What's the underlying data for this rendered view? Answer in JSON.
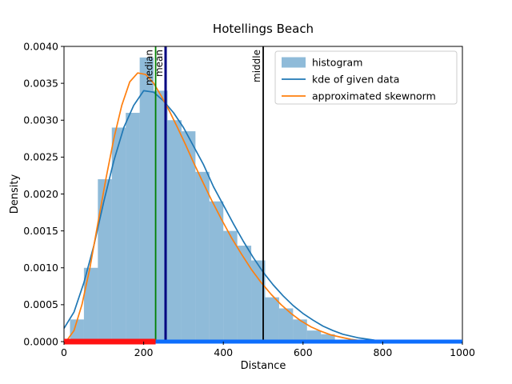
{
  "figure": {
    "title": "Hotellings Beach",
    "background": "#ffffff"
  },
  "chart_data": {
    "type": "histogram",
    "title": "Hotellings Beach",
    "xlabel": "Distance",
    "ylabel": "Density",
    "xlim": [
      0,
      1000
    ],
    "ylim": [
      0,
      0.004
    ],
    "grid": false,
    "xticks": [
      0,
      200,
      400,
      600,
      800,
      1000
    ],
    "xtick_labels": [
      "0",
      "200",
      "400",
      "600",
      "800",
      "1000"
    ],
    "yticks": [
      0,
      0.0005,
      0.001,
      0.0015,
      0.002,
      0.0025,
      0.003,
      0.0035,
      0.004
    ],
    "ytick_labels": [
      "0.0000",
      "0.0005",
      "0.0010",
      "0.0015",
      "0.0020",
      "0.0025",
      "0.0030",
      "0.0035",
      "0.0040"
    ],
    "histogram": {
      "label": "histogram",
      "color": "rgba(31,119,180,0.5)",
      "edges": [
        15,
        50,
        85,
        120,
        155,
        190,
        225,
        260,
        295,
        330,
        365,
        400,
        435,
        470,
        505,
        540,
        575,
        610,
        645,
        680
      ],
      "heights": [
        0.0003,
        0.001,
        0.0022,
        0.0029,
        0.0031,
        0.00385,
        0.0034,
        0.003,
        0.00285,
        0.0023,
        0.0019,
        0.0015,
        0.0013,
        0.0011,
        0.0006,
        0.00045,
        0.0003,
        0.00015,
        0.0001
      ]
    },
    "series": [
      {
        "name": "kde of given data",
        "color": "#1f77b4",
        "points": [
          [
            0,
            0.00018
          ],
          [
            25,
            0.0004
          ],
          [
            50,
            0.0008
          ],
          [
            75,
            0.0013
          ],
          [
            100,
            0.0019
          ],
          [
            125,
            0.00245
          ],
          [
            150,
            0.0029
          ],
          [
            175,
            0.0032
          ],
          [
            200,
            0.0034
          ],
          [
            225,
            0.00338
          ],
          [
            250,
            0.00326
          ],
          [
            275,
            0.0031
          ],
          [
            300,
            0.0029
          ],
          [
            325,
            0.00265
          ],
          [
            350,
            0.0024
          ],
          [
            375,
            0.0021
          ],
          [
            400,
            0.00185
          ],
          [
            425,
            0.0016
          ],
          [
            450,
            0.00136
          ],
          [
            475,
            0.00114
          ],
          [
            500,
            0.00094
          ],
          [
            525,
            0.00077
          ],
          [
            550,
            0.00062
          ],
          [
            575,
            0.00049
          ],
          [
            600,
            0.00038
          ],
          [
            625,
            0.00029
          ],
          [
            650,
            0.00021
          ],
          [
            675,
            0.00015
          ],
          [
            700,
            0.0001
          ],
          [
            740,
            5e-05
          ],
          [
            780,
            2e-05
          ],
          [
            830,
            1e-05
          ],
          [
            900,
            0
          ],
          [
            1000,
            0
          ]
        ]
      },
      {
        "name": "approximated skewnorm",
        "color": "#ff7f0e",
        "points": [
          [
            5,
            0
          ],
          [
            25,
            0.00015
          ],
          [
            45,
            0.0005
          ],
          [
            65,
            0.001
          ],
          [
            85,
            0.0016
          ],
          [
            105,
            0.0022
          ],
          [
            125,
            0.00275
          ],
          [
            145,
            0.0032
          ],
          [
            165,
            0.00352
          ],
          [
            185,
            0.00364
          ],
          [
            205,
            0.00362
          ],
          [
            225,
            0.0035
          ],
          [
            245,
            0.00332
          ],
          [
            265,
            0.00312
          ],
          [
            285,
            0.0029
          ],
          [
            305,
            0.00267
          ],
          [
            325,
            0.00243
          ],
          [
            345,
            0.0022
          ],
          [
            370,
            0.00192
          ],
          [
            395,
            0.00166
          ],
          [
            420,
            0.00141
          ],
          [
            445,
            0.00119
          ],
          [
            470,
            0.00098
          ],
          [
            495,
            0.0008
          ],
          [
            520,
            0.00064
          ],
          [
            545,
            0.0005
          ],
          [
            570,
            0.00038
          ],
          [
            595,
            0.00028
          ],
          [
            620,
            0.0002
          ],
          [
            645,
            0.00014
          ],
          [
            670,
            9e-05
          ],
          [
            695,
            6e-05
          ],
          [
            720,
            3e-05
          ],
          [
            750,
            1e-05
          ],
          [
            800,
            0
          ],
          [
            1000,
            0
          ]
        ]
      }
    ],
    "vlines": [
      {
        "label": "median",
        "x": 230,
        "color": "#008000",
        "lw": 1.8
      },
      {
        "label": "mean",
        "x": 255,
        "color": "#000080",
        "lw": 3
      },
      {
        "label": "middle",
        "x": 500,
        "color": "#000000",
        "lw": 1.8
      }
    ],
    "rug": [
      {
        "name": "above-median-blue",
        "color": "#0d6efd",
        "x0": 230,
        "x1": 1000,
        "thickness": 5
      },
      {
        "name": "below-median-red",
        "color": "#ff1212",
        "x0": 0,
        "x1": 230,
        "thickness": 7
      }
    ],
    "legend": {
      "position": "upper right",
      "entries": [
        {
          "label": "histogram",
          "handle": "patch",
          "color": "rgba(31,119,180,0.5)"
        },
        {
          "label": "kde of given data",
          "handle": "line",
          "color": "#1f77b4"
        },
        {
          "label": "approximated skewnorm",
          "handle": "line",
          "color": "#ff7f0e"
        }
      ]
    }
  }
}
